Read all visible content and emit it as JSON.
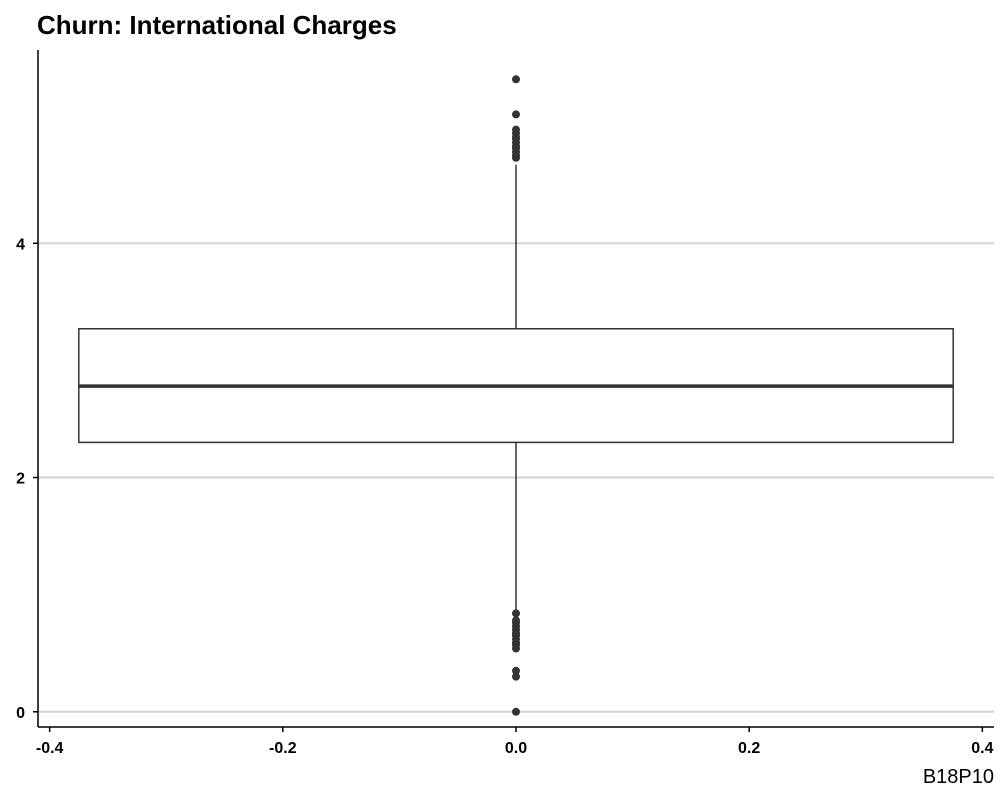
{
  "chart_data": {
    "type": "boxplot",
    "title": "Churn: International Charges",
    "caption": "B18P10",
    "xlabel": "",
    "ylabel": "",
    "xlim": [
      -0.41,
      0.41
    ],
    "ylim": [
      -0.13,
      5.65
    ],
    "x_ticks": [
      -0.4,
      -0.2,
      0.0,
      0.2,
      0.4
    ],
    "x_tick_labels": [
      "-0.4",
      "-0.2",
      "0.0",
      "0.2",
      "0.4"
    ],
    "y_ticks": [
      0,
      2,
      4
    ],
    "y_tick_labels": [
      "0",
      "2",
      "4"
    ],
    "grid": "horizontal major",
    "box": {
      "x_center": 0.0,
      "x_range": [
        -0.375,
        0.375
      ],
      "whisker_low": 0.86,
      "q1": 2.3,
      "median": 2.78,
      "q3": 3.27,
      "whisker_high": 4.67,
      "outliers": [
        5.4,
        5.1,
        4.97,
        4.94,
        4.91,
        4.89,
        4.86,
        4.83,
        4.81,
        4.78,
        4.75,
        4.73,
        0.84,
        0.78,
        0.76,
        0.73,
        0.7,
        0.67,
        0.65,
        0.62,
        0.59,
        0.57,
        0.54,
        0.35,
        0.3,
        0.0
      ]
    },
    "colors": {
      "box_line": "#333333",
      "outlier": "#333333",
      "grid": "#d3d3d3",
      "axis": "#000000"
    }
  }
}
